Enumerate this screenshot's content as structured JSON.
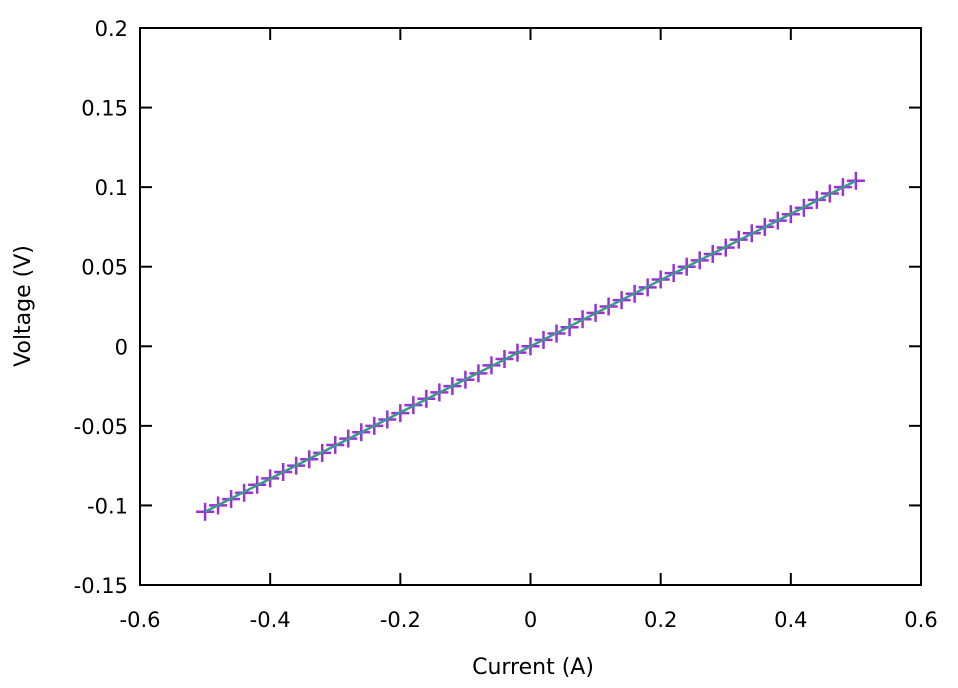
{
  "chart_data": {
    "type": "scatter",
    "title": "",
    "xlabel": "Current (A)",
    "ylabel": "Voltage (V)",
    "xlim": [
      -0.6,
      0.6
    ],
    "ylim": [
      -0.15,
      0.2
    ],
    "x_ticks": [
      "-0.6",
      "-0.4",
      "-0.2",
      "0",
      "0.2",
      "0.4",
      "0.6"
    ],
    "y_ticks": [
      "-0.15",
      "-0.1",
      "-0.05",
      "0",
      "0.05",
      "0.1",
      "0.15",
      "0.2"
    ],
    "grid": false,
    "legend": "none",
    "series": [
      {
        "marker": "plus",
        "color": "#9b30d9",
        "x": [
          -0.5,
          -0.48,
          -0.46,
          -0.44,
          -0.42,
          -0.4,
          -0.38,
          -0.36,
          -0.34,
          -0.32,
          -0.3,
          -0.28,
          -0.26,
          -0.24,
          -0.22,
          -0.2,
          -0.18,
          -0.16,
          -0.14,
          -0.12,
          -0.1,
          -0.08,
          -0.06,
          -0.04,
          -0.02,
          0.0,
          0.02,
          0.04,
          0.06,
          0.08,
          0.1,
          0.12,
          0.14,
          0.16,
          0.18,
          0.2,
          0.22,
          0.24,
          0.26,
          0.28,
          0.3,
          0.32,
          0.34,
          0.36,
          0.38,
          0.4,
          0.42,
          0.44,
          0.46,
          0.48,
          0.5
        ],
        "y": [
          -0.104,
          -0.1,
          -0.096,
          -0.092,
          -0.087,
          -0.083,
          -0.079,
          -0.075,
          -0.071,
          -0.067,
          -0.062,
          -0.058,
          -0.054,
          -0.05,
          -0.046,
          -0.042,
          -0.037,
          -0.033,
          -0.029,
          -0.025,
          -0.021,
          -0.017,
          -0.012,
          -0.008,
          -0.004,
          0.0,
          0.004,
          0.008,
          0.012,
          0.017,
          0.021,
          0.025,
          0.029,
          0.033,
          0.037,
          0.042,
          0.046,
          0.05,
          0.054,
          0.058,
          0.062,
          0.067,
          0.071,
          0.075,
          0.079,
          0.083,
          0.087,
          0.092,
          0.096,
          0.1,
          0.104
        ]
      },
      {
        "type": "line",
        "color": "#3a9a8a",
        "x": [
          -0.5,
          0.5
        ],
        "y": [
          -0.104,
          0.104
        ]
      }
    ]
  }
}
